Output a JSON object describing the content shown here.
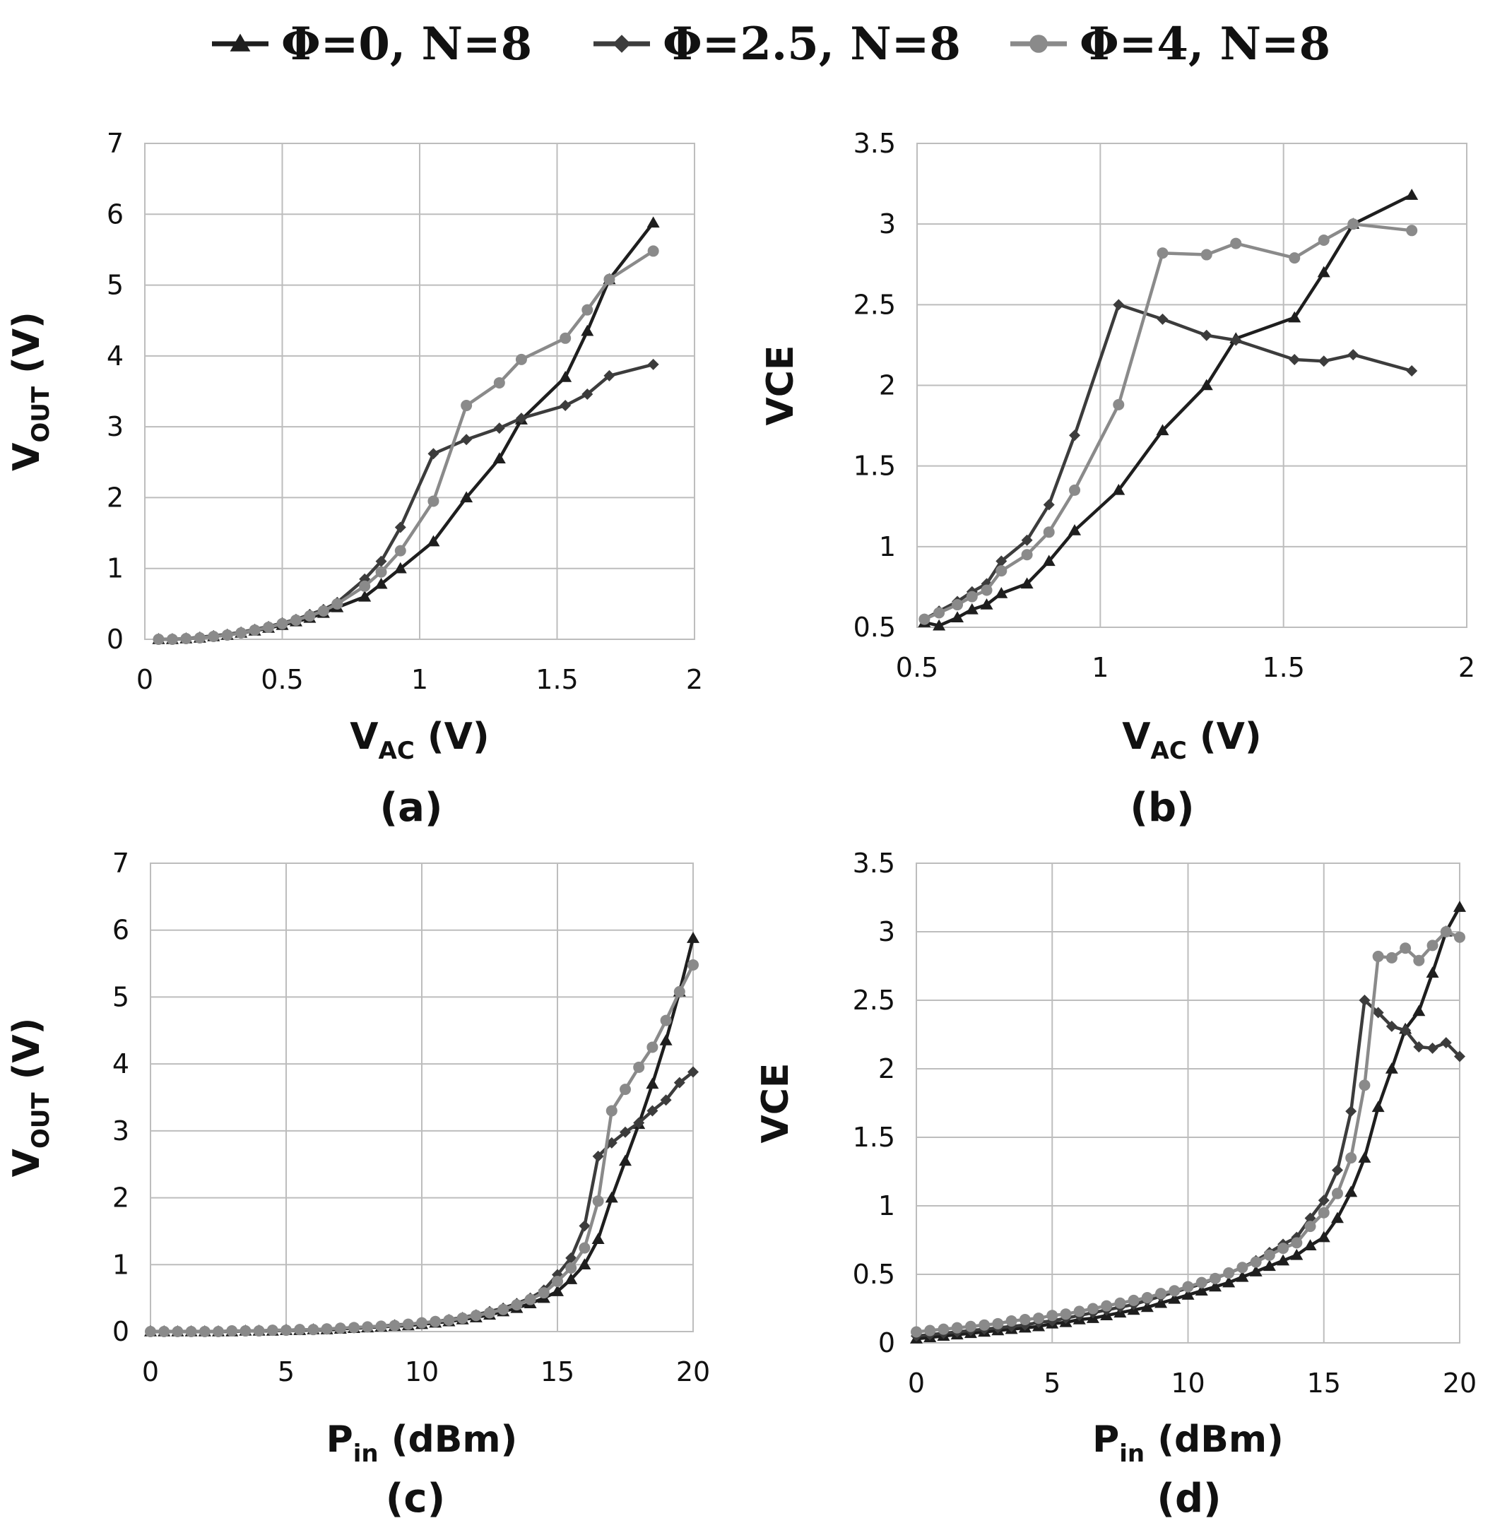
{
  "legend": [
    {
      "label": "Φ=0, N=8",
      "color": "#1e1e1e",
      "marker": "triangle"
    },
    {
      "label": "Φ=2.5, N=8",
      "color": "#3c3c3c",
      "marker": "diamond"
    },
    {
      "label": "Φ=4, N=8",
      "color": "#8a8a8a",
      "marker": "circle"
    }
  ],
  "chart_data": [
    {
      "panel_label": "(a)",
      "type": "line",
      "xlabel": {
        "main": "V",
        "sub": "AC",
        "rest": " (V)"
      },
      "ylabel": {
        "main": "V",
        "sub": "OUT",
        "rest": " (V)"
      },
      "xlim": [
        0,
        2
      ],
      "ylim": [
        0,
        7
      ],
      "xticks": [
        0,
        0.5,
        1,
        1.5,
        2
      ],
      "xtick_labels": [
        "0",
        "0.5",
        "1",
        "1.5",
        "2"
      ],
      "yticks": [
        0,
        1,
        2,
        3,
        4,
        5,
        6,
        7
      ],
      "ytick_labels": [
        "0",
        "1",
        "2",
        "3",
        "4",
        "5",
        "6",
        "7"
      ],
      "grid": true,
      "series": [
        {
          "name": "Φ=0, N=8",
          "marker": "triangle",
          "x": [
            0.05,
            0.1,
            0.15,
            0.2,
            0.25,
            0.3,
            0.35,
            0.4,
            0.45,
            0.5,
            0.55,
            0.6,
            0.65,
            0.7,
            0.8,
            0.86,
            0.93,
            1.05,
            1.17,
            1.29,
            1.37,
            1.53,
            1.61,
            1.69,
            1.85
          ],
          "y": [
            0.0,
            0.0,
            0.01,
            0.02,
            0.04,
            0.06,
            0.09,
            0.12,
            0.16,
            0.2,
            0.25,
            0.3,
            0.37,
            0.45,
            0.6,
            0.78,
            1.0,
            1.38,
            2.0,
            2.55,
            3.1,
            3.7,
            4.35,
            5.08,
            5.88
          ]
        },
        {
          "name": "Φ=2.5, N=8",
          "marker": "diamond",
          "x": [
            0.05,
            0.1,
            0.15,
            0.2,
            0.25,
            0.3,
            0.35,
            0.4,
            0.45,
            0.5,
            0.55,
            0.6,
            0.65,
            0.7,
            0.8,
            0.86,
            0.93,
            1.05,
            1.17,
            1.29,
            1.37,
            1.53,
            1.61,
            1.69,
            1.85
          ],
          "y": [
            0.0,
            0.0,
            0.01,
            0.03,
            0.05,
            0.07,
            0.1,
            0.14,
            0.18,
            0.23,
            0.28,
            0.35,
            0.42,
            0.52,
            0.85,
            1.1,
            1.58,
            2.62,
            2.82,
            2.98,
            3.12,
            3.3,
            3.46,
            3.72,
            3.88
          ]
        },
        {
          "name": "Φ=4, N=8",
          "marker": "circle",
          "x": [
            0.05,
            0.1,
            0.15,
            0.2,
            0.25,
            0.3,
            0.35,
            0.4,
            0.45,
            0.5,
            0.55,
            0.6,
            0.65,
            0.7,
            0.8,
            0.86,
            0.93,
            1.05,
            1.17,
            1.29,
            1.37,
            1.53,
            1.61,
            1.69,
            1.85
          ],
          "y": [
            0.0,
            0.0,
            0.01,
            0.02,
            0.04,
            0.06,
            0.09,
            0.13,
            0.17,
            0.22,
            0.27,
            0.33,
            0.4,
            0.5,
            0.75,
            0.95,
            1.25,
            1.95,
            3.3,
            3.62,
            3.95,
            4.25,
            4.65,
            5.08,
            5.48
          ]
        }
      ]
    },
    {
      "panel_label": "(b)",
      "type": "line",
      "xlabel": {
        "main": "V",
        "sub": "AC",
        "rest": " (V)"
      },
      "ylabel": {
        "main": "VCE",
        "sub": "",
        "rest": ""
      },
      "xlim": [
        0.5,
        2
      ],
      "ylim": [
        0.5,
        3.5
      ],
      "xticks": [
        0.5,
        1,
        1.5,
        2
      ],
      "xtick_labels": [
        "0.5",
        "1",
        "1.5",
        "2"
      ],
      "yticks": [
        0.5,
        1,
        1.5,
        2,
        2.5,
        3,
        3.5
      ],
      "ytick_labels": [
        "0.5",
        "1",
        "1.5",
        "2",
        "2.5",
        "3",
        "3.5"
      ],
      "grid": true,
      "series": [
        {
          "name": "Φ=0, N=8",
          "marker": "triangle",
          "x": [
            0.52,
            0.56,
            0.61,
            0.65,
            0.69,
            0.73,
            0.8,
            0.86,
            0.93,
            1.05,
            1.17,
            1.29,
            1.37,
            1.53,
            1.61,
            1.69,
            1.85
          ],
          "y": [
            0.53,
            0.51,
            0.56,
            0.61,
            0.64,
            0.71,
            0.77,
            0.91,
            1.1,
            1.35,
            1.72,
            2.0,
            2.29,
            2.42,
            2.7,
            3.0,
            3.18
          ]
        },
        {
          "name": "Φ=2.5, N=8",
          "marker": "diamond",
          "x": [
            0.52,
            0.56,
            0.61,
            0.65,
            0.69,
            0.73,
            0.8,
            0.86,
            0.93,
            1.05,
            1.17,
            1.29,
            1.37,
            1.53,
            1.61,
            1.69,
            1.85
          ],
          "y": [
            0.55,
            0.6,
            0.66,
            0.72,
            0.77,
            0.91,
            1.04,
            1.26,
            1.69,
            2.5,
            2.41,
            2.31,
            2.28,
            2.16,
            2.15,
            2.19,
            2.09
          ]
        },
        {
          "name": "Φ=4, N=8",
          "marker": "circle",
          "x": [
            0.52,
            0.56,
            0.61,
            0.65,
            0.69,
            0.73,
            0.8,
            0.86,
            0.93,
            1.05,
            1.17,
            1.29,
            1.37,
            1.53,
            1.61,
            1.69,
            1.85
          ],
          "y": [
            0.55,
            0.59,
            0.64,
            0.69,
            0.73,
            0.85,
            0.95,
            1.09,
            1.35,
            1.88,
            2.82,
            2.81,
            2.88,
            2.79,
            2.9,
            3.0,
            2.96
          ]
        }
      ]
    },
    {
      "panel_label": "(c)",
      "type": "line",
      "xlabel": {
        "main": "P",
        "sub": "in",
        "rest": " (dBm)"
      },
      "ylabel": {
        "main": "V",
        "sub": "OUT",
        "rest": " (V)"
      },
      "xlim": [
        0,
        20
      ],
      "ylim": [
        0,
        7
      ],
      "xticks": [
        0,
        5,
        10,
        15,
        20
      ],
      "xtick_labels": [
        "0",
        "5",
        "10",
        "15",
        "20"
      ],
      "yticks": [
        0,
        1,
        2,
        3,
        4,
        5,
        6,
        7
      ],
      "ytick_labels": [
        "0",
        "1",
        "2",
        "3",
        "4",
        "5",
        "6",
        "7"
      ],
      "grid": true,
      "series": [
        {
          "name": "Φ=0, N=8",
          "marker": "triangle",
          "x": [
            0,
            0.5,
            1,
            1.5,
            2,
            2.5,
            3,
            3.5,
            4,
            4.5,
            5,
            5.5,
            6,
            6.5,
            7,
            7.5,
            8,
            8.5,
            9,
            9.5,
            10,
            10.5,
            11,
            11.5,
            12,
            12.5,
            13,
            13.5,
            14,
            14.5,
            15,
            15.5,
            16,
            16.5,
            17,
            17.5,
            18,
            18.5,
            19,
            19.5,
            20
          ],
          "y": [
            0,
            0,
            0,
            0,
            0,
            0,
            0,
            0.01,
            0.01,
            0.01,
            0.02,
            0.02,
            0.03,
            0.03,
            0.04,
            0.05,
            0.06,
            0.07,
            0.08,
            0.09,
            0.11,
            0.13,
            0.15,
            0.18,
            0.21,
            0.25,
            0.3,
            0.35,
            0.42,
            0.5,
            0.6,
            0.78,
            1.0,
            1.38,
            2.0,
            2.55,
            3.1,
            3.7,
            4.35,
            5.08,
            5.88
          ]
        },
        {
          "name": "Φ=2.5, N=8",
          "marker": "diamond",
          "x": [
            0,
            0.5,
            1,
            1.5,
            2,
            2.5,
            3,
            3.5,
            4,
            4.5,
            5,
            5.5,
            6,
            6.5,
            7,
            7.5,
            8,
            8.5,
            9,
            9.5,
            10,
            10.5,
            11,
            11.5,
            12,
            12.5,
            13,
            13.5,
            14,
            14.5,
            15,
            15.5,
            16,
            16.5,
            17,
            17.5,
            18,
            18.5,
            19,
            19.5,
            20
          ],
          "y": [
            0,
            0,
            0,
            0,
            0,
            0,
            0.01,
            0.01,
            0.01,
            0.02,
            0.02,
            0.03,
            0.03,
            0.04,
            0.05,
            0.06,
            0.07,
            0.08,
            0.1,
            0.11,
            0.13,
            0.15,
            0.18,
            0.21,
            0.25,
            0.3,
            0.35,
            0.42,
            0.5,
            0.62,
            0.85,
            1.1,
            1.58,
            2.62,
            2.82,
            2.98,
            3.12,
            3.3,
            3.46,
            3.72,
            3.88
          ]
        },
        {
          "name": "Φ=4, N=8",
          "marker": "circle",
          "x": [
            0,
            0.5,
            1,
            1.5,
            2,
            2.5,
            3,
            3.5,
            4,
            4.5,
            5,
            5.5,
            6,
            6.5,
            7,
            7.5,
            8,
            8.5,
            9,
            9.5,
            10,
            10.5,
            11,
            11.5,
            12,
            12.5,
            13,
            13.5,
            14,
            14.5,
            15,
            15.5,
            16,
            16.5,
            17,
            17.5,
            18,
            18.5,
            19,
            19.5,
            20
          ],
          "y": [
            0,
            0,
            0,
            0,
            0,
            0,
            0.01,
            0.01,
            0.01,
            0.02,
            0.02,
            0.03,
            0.03,
            0.04,
            0.05,
            0.06,
            0.07,
            0.08,
            0.09,
            0.11,
            0.13,
            0.15,
            0.17,
            0.2,
            0.24,
            0.28,
            0.33,
            0.4,
            0.48,
            0.58,
            0.75,
            0.95,
            1.25,
            1.95,
            3.3,
            3.62,
            3.95,
            4.25,
            4.65,
            5.08,
            5.48
          ]
        }
      ]
    },
    {
      "panel_label": "(d)",
      "type": "line",
      "xlabel": {
        "main": "P",
        "sub": "in",
        "rest": " (dBm)"
      },
      "ylabel": {
        "main": "VCE",
        "sub": "",
        "rest": ""
      },
      "xlim": [
        0,
        20
      ],
      "ylim": [
        0,
        3.5
      ],
      "xticks": [
        0,
        5,
        10,
        15,
        20
      ],
      "xtick_labels": [
        "0",
        "5",
        "10",
        "15",
        "20"
      ],
      "yticks": [
        0,
        0.5,
        1,
        1.5,
        2,
        2.5,
        3,
        3.5
      ],
      "ytick_labels": [
        "0",
        "0.5",
        "1",
        "1.5",
        "2",
        "2.5",
        "3",
        "3.5"
      ],
      "grid": true,
      "series": [
        {
          "name": "Φ=0, N=8",
          "marker": "triangle",
          "x": [
            0,
            0.5,
            1,
            1.5,
            2,
            2.5,
            3,
            3.5,
            4,
            4.5,
            5,
            5.5,
            6,
            6.5,
            7,
            7.5,
            8,
            8.5,
            9,
            9.5,
            10,
            10.5,
            11,
            11.5,
            12,
            12.5,
            13,
            13.5,
            14,
            14.5,
            15,
            15.5,
            16,
            16.5,
            17,
            17.5,
            18,
            18.5,
            19,
            19.5,
            20
          ],
          "y": [
            0.03,
            0.04,
            0.05,
            0.06,
            0.07,
            0.08,
            0.09,
            0.1,
            0.11,
            0.12,
            0.14,
            0.15,
            0.17,
            0.18,
            0.2,
            0.22,
            0.24,
            0.26,
            0.29,
            0.32,
            0.35,
            0.38,
            0.41,
            0.44,
            0.48,
            0.52,
            0.56,
            0.6,
            0.64,
            0.71,
            0.77,
            0.91,
            1.1,
            1.35,
            1.72,
            2.0,
            2.29,
            2.42,
            2.7,
            3.0,
            3.18
          ]
        },
        {
          "name": "Φ=2.5, N=8",
          "marker": "diamond",
          "x": [
            0,
            0.5,
            1,
            1.5,
            2,
            2.5,
            3,
            3.5,
            4,
            4.5,
            5,
            5.5,
            6,
            6.5,
            7,
            7.5,
            8,
            8.5,
            9,
            9.5,
            10,
            10.5,
            11,
            11.5,
            12,
            12.5,
            13,
            13.5,
            14,
            14.5,
            15,
            15.5,
            16,
            16.5,
            17,
            17.5,
            18,
            18.5,
            19,
            19.5,
            20
          ],
          "y": [
            0.05,
            0.06,
            0.07,
            0.08,
            0.09,
            0.1,
            0.11,
            0.12,
            0.13,
            0.15,
            0.16,
            0.18,
            0.2,
            0.22,
            0.24,
            0.26,
            0.28,
            0.31,
            0.34,
            0.37,
            0.4,
            0.43,
            0.47,
            0.51,
            0.55,
            0.6,
            0.66,
            0.72,
            0.77,
            0.91,
            1.04,
            1.26,
            1.69,
            2.5,
            2.41,
            2.31,
            2.28,
            2.16,
            2.15,
            2.19,
            2.09
          ]
        },
        {
          "name": "Φ=4, N=8",
          "marker": "circle",
          "x": [
            0,
            0.5,
            1,
            1.5,
            2,
            2.5,
            3,
            3.5,
            4,
            4.5,
            5,
            5.5,
            6,
            6.5,
            7,
            7.5,
            8,
            8.5,
            9,
            9.5,
            10,
            10.5,
            11,
            11.5,
            12,
            12.5,
            13,
            13.5,
            14,
            14.5,
            15,
            15.5,
            16,
            16.5,
            17,
            17.5,
            18,
            18.5,
            19,
            19.5,
            20
          ],
          "y": [
            0.08,
            0.09,
            0.1,
            0.11,
            0.12,
            0.13,
            0.14,
            0.16,
            0.17,
            0.18,
            0.2,
            0.21,
            0.23,
            0.25,
            0.27,
            0.29,
            0.31,
            0.33,
            0.36,
            0.38,
            0.41,
            0.44,
            0.47,
            0.51,
            0.55,
            0.59,
            0.64,
            0.69,
            0.73,
            0.85,
            0.95,
            1.09,
            1.35,
            1.88,
            2.82,
            2.81,
            2.88,
            2.79,
            2.9,
            3.0,
            2.96
          ]
        }
      ]
    }
  ]
}
